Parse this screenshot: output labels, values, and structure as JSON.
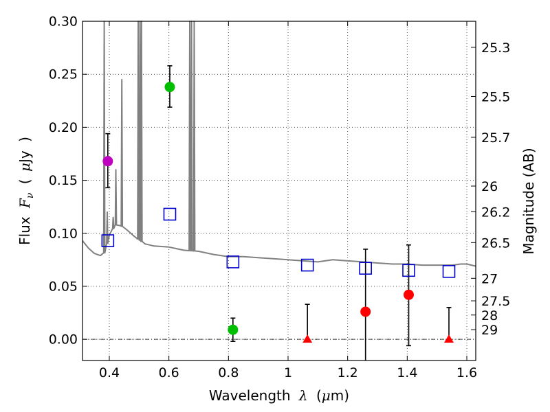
{
  "chart_data": {
    "type": "scatter",
    "xlabel_parts": [
      "Wavelength",
      "λ",
      "(",
      "μ",
      "m)"
    ],
    "ylabel_parts": [
      "Flux",
      "F",
      "ν",
      "(",
      "μ",
      "Jy",
      ")"
    ],
    "ylabel_right": "Magnitude (AB)",
    "xlim": [
      0.31,
      1.63
    ],
    "ylim": [
      -0.02,
      0.3
    ],
    "grid": true,
    "x_ticks": [
      0.4,
      0.6,
      0.8,
      1.0,
      1.2,
      1.4,
      1.6
    ],
    "x_tick_labels": [
      "0.4",
      "0.6",
      "0.8",
      "1",
      "1.2",
      "1.4",
      "1.6"
    ],
    "y_ticks": [
      0.0,
      0.05,
      0.1,
      0.15,
      0.2,
      0.25,
      0.3
    ],
    "y_tick_labels": [
      "0.00",
      "0.05",
      "0.10",
      "0.15",
      "0.20",
      "0.25",
      "0.30"
    ],
    "mag_ticks": [
      25.3,
      25.5,
      25.7,
      26.0,
      26.2,
      26.5,
      27.0,
      27.5,
      28.0,
      29.0
    ],
    "mag_tick_labels": [
      "25.3",
      "25.5",
      "25.7",
      "26",
      "26.2",
      "26.5",
      "27",
      "27.5",
      "28",
      "29"
    ],
    "colors": {
      "spectrum": "#808080",
      "model_square": "#0000cc",
      "magenta": "#bf00bf",
      "green": "#00bf00",
      "red": "#ff0000",
      "errorbar": "#000000"
    },
    "spectrum": {
      "continuum": [
        [
          0.31,
          0.093
        ],
        [
          0.33,
          0.086
        ],
        [
          0.35,
          0.081
        ],
        [
          0.37,
          0.079
        ],
        [
          0.385,
          0.082
        ],
        [
          0.4,
          0.098
        ],
        [
          0.42,
          0.108
        ],
        [
          0.44,
          0.107
        ],
        [
          0.46,
          0.103
        ],
        [
          0.48,
          0.098
        ],
        [
          0.5,
          0.094
        ],
        [
          0.52,
          0.09
        ],
        [
          0.55,
          0.088
        ],
        [
          0.6,
          0.087
        ],
        [
          0.65,
          0.084
        ],
        [
          0.7,
          0.083
        ],
        [
          0.75,
          0.08
        ],
        [
          0.8,
          0.078
        ],
        [
          0.85,
          0.078
        ],
        [
          0.9,
          0.077
        ],
        [
          0.95,
          0.076
        ],
        [
          1.0,
          0.075
        ],
        [
          1.05,
          0.074
        ],
        [
          1.1,
          0.073
        ],
        [
          1.15,
          0.075
        ],
        [
          1.2,
          0.074
        ],
        [
          1.25,
          0.073
        ],
        [
          1.3,
          0.072
        ],
        [
          1.35,
          0.071
        ],
        [
          1.4,
          0.071
        ],
        [
          1.45,
          0.07
        ],
        [
          1.5,
          0.07
        ],
        [
          1.55,
          0.07
        ],
        [
          1.58,
          0.071
        ],
        [
          1.6,
          0.071
        ],
        [
          1.63,
          0.069
        ]
      ],
      "emission_lines": [
        {
          "x": 0.383,
          "peak": 0.3
        },
        {
          "x": 0.393,
          "peak": 0.12
        },
        {
          "x": 0.413,
          "peak": 0.115
        },
        {
          "x": 0.422,
          "peak": 0.16
        },
        {
          "x": 0.442,
          "peak": 0.245
        },
        {
          "x": 0.497,
          "peak": 0.3
        },
        {
          "x": 0.503,
          "peak": 0.3
        },
        {
          "x": 0.508,
          "peak": 0.3
        },
        {
          "x": 0.67,
          "peak": 0.3
        },
        {
          "x": 0.676,
          "peak": 0.3
        },
        {
          "x": 0.685,
          "peak": 0.3
        }
      ]
    },
    "model_points": [
      {
        "x": 0.395,
        "y": 0.093
      },
      {
        "x": 0.603,
        "y": 0.118
      },
      {
        "x": 0.815,
        "y": 0.073
      },
      {
        "x": 1.065,
        "y": 0.07
      },
      {
        "x": 1.26,
        "y": 0.067
      },
      {
        "x": 1.405,
        "y": 0.065
      },
      {
        "x": 1.54,
        "y": 0.064
      }
    ],
    "observed_points": [
      {
        "x": 0.395,
        "y": 0.168,
        "err_low": 0.143,
        "err_high": 0.194,
        "color": "magenta",
        "marker": "circle"
      },
      {
        "x": 0.603,
        "y": 0.238,
        "err_low": 0.219,
        "err_high": 0.258,
        "color": "green",
        "marker": "circle"
      },
      {
        "x": 0.815,
        "y": 0.009,
        "err_low": -0.002,
        "err_high": 0.02,
        "color": "green",
        "marker": "circle"
      },
      {
        "x": 1.065,
        "y": 0.0,
        "err_low": 0.0,
        "err_high": 0.033,
        "color": "red",
        "marker": "triangle"
      },
      {
        "x": 1.26,
        "y": 0.026,
        "err_low": -0.02,
        "err_high": 0.085,
        "color": "red",
        "marker": "circle"
      },
      {
        "x": 1.405,
        "y": 0.042,
        "err_low": -0.006,
        "err_high": 0.089,
        "color": "red",
        "marker": "circle"
      },
      {
        "x": 1.54,
        "y": 0.0,
        "err_low": 0.0,
        "err_high": 0.03,
        "color": "red",
        "marker": "triangle"
      }
    ]
  }
}
